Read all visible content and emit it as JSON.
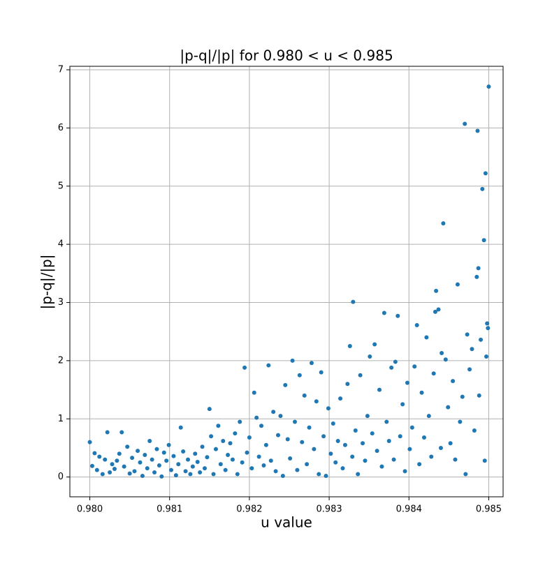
{
  "chart_data": {
    "type": "scatter",
    "title": "|p-q|/|p| for 0.980 < u < 0.985",
    "xlabel": "u value",
    "ylabel": "|p-q|/|p|",
    "color": "#1f77b4",
    "grid": true,
    "xlim": [
      0.97975,
      0.98518
    ],
    "ylim": [
      -0.34,
      7.06
    ],
    "xticks": [
      {
        "value": 0.98,
        "label": "0.980"
      },
      0.981,
      0.982,
      0.983,
      0.984,
      0.985
    ],
    "yticks": [
      0,
      1,
      2,
      3,
      4,
      5,
      6,
      7
    ],
    "x": [
      0.98,
      0.98003,
      0.98006,
      0.98009,
      0.98012,
      0.98016,
      0.98019,
      0.98022,
      0.98025,
      0.98028,
      0.98031,
      0.98034,
      0.98037,
      0.9804,
      0.98043,
      0.98047,
      0.9805,
      0.98053,
      0.98056,
      0.9806,
      0.98063,
      0.98066,
      0.98069,
      0.98072,
      0.98075,
      0.98078,
      0.98081,
      0.98084,
      0.98087,
      0.9809,
      0.98093,
      0.98096,
      0.98099,
      0.98102,
      0.98105,
      0.98108,
      0.98111,
      0.98114,
      0.98117,
      0.9812,
      0.98123,
      0.98126,
      0.98129,
      0.98132,
      0.98135,
      0.98138,
      0.98141,
      0.98144,
      0.98147,
      0.9815,
      0.98152,
      0.98155,
      0.98158,
      0.98161,
      0.98164,
      0.98167,
      0.9817,
      0.98173,
      0.98176,
      0.98179,
      0.98182,
      0.98185,
      0.98188,
      0.98191,
      0.98194,
      0.98197,
      0.982,
      0.98203,
      0.98206,
      0.98209,
      0.98212,
      0.98215,
      0.98218,
      0.98221,
      0.98224,
      0.98227,
      0.9823,
      0.98233,
      0.98236,
      0.98239,
      0.98242,
      0.98245,
      0.98248,
      0.98251,
      0.98254,
      0.98257,
      0.9826,
      0.98263,
      0.98266,
      0.98269,
      0.98272,
      0.98275,
      0.98278,
      0.98281,
      0.98284,
      0.98287,
      0.9829,
      0.98293,
      0.98296,
      0.98299,
      0.98302,
      0.98305,
      0.98308,
      0.98311,
      0.98314,
      0.98317,
      0.9832,
      0.98323,
      0.98326,
      0.98329,
      0.9833,
      0.98333,
      0.98336,
      0.98339,
      0.98342,
      0.98345,
      0.98348,
      0.98351,
      0.98354,
      0.98357,
      0.9836,
      0.98363,
      0.98366,
      0.98369,
      0.98372,
      0.98375,
      0.98378,
      0.98381,
      0.98383,
      0.98386,
      0.98389,
      0.98392,
      0.98395,
      0.98398,
      0.98401,
      0.98404,
      0.98407,
      0.9841,
      0.98413,
      0.98416,
      0.98419,
      0.98422,
      0.98425,
      0.98428,
      0.98431,
      0.98433,
      0.98434,
      0.98437,
      0.9844,
      0.98441,
      0.98443,
      0.98446,
      0.98449,
      0.98452,
      0.98455,
      0.98458,
      0.98461,
      0.98464,
      0.98467,
      0.9847,
      0.98471,
      0.98473,
      0.98476,
      0.98479,
      0.98482,
      0.98485,
      0.98486,
      0.98487,
      0.98488,
      0.9849,
      0.98492,
      0.98494,
      0.98495,
      0.98496,
      0.98497,
      0.98498,
      0.98499,
      0.985
    ],
    "values": [
      0.6,
      0.19,
      0.41,
      0.12,
      0.35,
      0.05,
      0.3,
      0.77,
      0.08,
      0.22,
      0.14,
      0.28,
      0.4,
      0.77,
      0.18,
      0.52,
      0.06,
      0.33,
      0.1,
      0.45,
      0.25,
      0.02,
      0.38,
      0.15,
      0.62,
      0.3,
      0.08,
      0.48,
      0.2,
      0.01,
      0.42,
      0.28,
      0.55,
      0.12,
      0.36,
      0.03,
      0.22,
      0.85,
      0.44,
      0.1,
      0.3,
      0.05,
      0.18,
      0.4,
      0.26,
      0.08,
      0.52,
      0.15,
      0.34,
      1.17,
      0.7,
      0.05,
      0.48,
      0.88,
      0.22,
      0.62,
      0.12,
      0.38,
      0.58,
      0.3,
      0.75,
      0.05,
      0.95,
      0.25,
      1.88,
      0.42,
      0.68,
      0.15,
      1.45,
      1.02,
      0.35,
      0.88,
      0.2,
      0.55,
      1.92,
      0.28,
      1.12,
      0.1,
      0.72,
      1.05,
      0.02,
      1.58,
      0.65,
      0.32,
      2.0,
      0.95,
      0.12,
      1.75,
      0.6,
      1.4,
      0.22,
      0.85,
      1.96,
      0.48,
      1.3,
      0.05,
      1.8,
      0.7,
      0.02,
      1.18,
      0.4,
      0.92,
      0.25,
      0.62,
      1.35,
      0.15,
      0.55,
      1.6,
      2.25,
      0.35,
      3.01,
      0.8,
      0.05,
      1.75,
      0.58,
      0.28,
      1.05,
      2.07,
      0.75,
      2.28,
      0.45,
      1.5,
      0.18,
      2.82,
      0.95,
      0.62,
      1.88,
      0.3,
      1.98,
      2.77,
      0.7,
      1.25,
      0.1,
      1.62,
      0.48,
      0.85,
      1.9,
      2.61,
      0.22,
      1.45,
      0.68,
      2.4,
      1.05,
      0.35,
      1.78,
      2.84,
      3.2,
      2.88,
      0.5,
      2.13,
      4.36,
      2.02,
      1.2,
      0.58,
      1.65,
      0.3,
      3.31,
      0.95,
      1.38,
      6.07,
      0.05,
      2.45,
      1.85,
      2.2,
      0.8,
      3.44,
      5.95,
      3.59,
      1.4,
      2.36,
      4.95,
      4.07,
      0.28,
      5.22,
      2.07,
      2.64,
      2.56,
      6.71
    ]
  }
}
